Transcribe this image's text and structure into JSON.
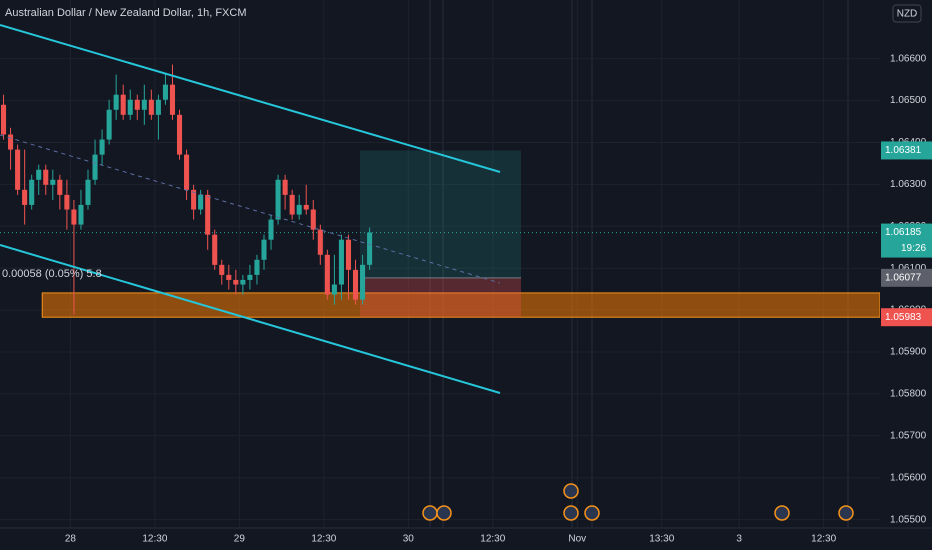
{
  "chart_data": {
    "type": "candlestick",
    "title": "Australian Dollar / New Zealand Dollar, 1h, FXCM",
    "currency": "NZD",
    "annotation": "0.00058 (0.05%) 5.8",
    "up_color": "#26a69a",
    "down_color": "#ef5350",
    "open": [
      1.0649,
      1.06419,
      1.06383,
      1.06287,
      1.06251,
      1.06311,
      1.06335,
      1.06299,
      1.06311,
      1.06275,
      1.0624,
      1.06204,
      1.06251,
      1.06311,
      1.06371,
      1.06407,
      1.06478,
      1.06514,
      1.06466,
      1.06502,
      1.06478,
      1.06502,
      1.06466,
      1.06502,
      1.06538,
      1.06466,
      1.06371,
      1.06287,
      1.0624,
      1.06275,
      1.0618,
      1.06108,
      1.06084,
      1.06072,
      1.06061,
      1.06072,
      1.06084,
      1.0612,
      1.06168,
      1.06216,
      1.06311,
      1.06275,
      1.06228,
      1.06251,
      1.0624,
      1.06192,
      1.06132,
      1.06037,
      1.06061,
      1.06168,
      1.06096,
      1.06025,
      1.06108
    ],
    "high": [
      1.06514,
      1.06435,
      1.06395,
      1.06383,
      1.06323,
      1.06347,
      1.06347,
      1.06335,
      1.06323,
      1.06311,
      1.06263,
      1.06287,
      1.06335,
      1.06407,
      1.06431,
      1.06502,
      1.06562,
      1.06538,
      1.06526,
      1.06514,
      1.06538,
      1.06526,
      1.06514,
      1.06562,
      1.06586,
      1.06478,
      1.06383,
      1.06299,
      1.06287,
      1.06287,
      1.06192,
      1.0612,
      1.06108,
      1.06096,
      1.06084,
      1.06108,
      1.06132,
      1.0618,
      1.06228,
      1.06323,
      1.06323,
      1.06287,
      1.06275,
      1.06299,
      1.06263,
      1.06204,
      1.06144,
      1.06132,
      1.0618,
      1.0618,
      1.0612,
      1.06132,
      1.06197
    ],
    "low": [
      1.06407,
      1.06335,
      1.06275,
      1.06204,
      1.0624,
      1.06275,
      1.06275,
      1.06263,
      1.0624,
      1.06192,
      1.05989,
      1.06192,
      1.0624,
      1.06299,
      1.06347,
      1.06395,
      1.06454,
      1.06454,
      1.06454,
      1.06454,
      1.06442,
      1.06454,
      1.06407,
      1.0649,
      1.06454,
      1.06359,
      1.06263,
      1.06216,
      1.06228,
      1.06144,
      1.06096,
      1.06061,
      1.06049,
      1.06037,
      1.06037,
      1.06049,
      1.06061,
      1.06096,
      1.06144,
      1.06204,
      1.0624,
      1.06216,
      1.06216,
      1.06228,
      1.06168,
      1.06108,
      1.06025,
      1.06013,
      1.06025,
      1.06025,
      1.06013,
      1.06013,
      1.06096
    ],
    "close": [
      1.06419,
      1.06383,
      1.06287,
      1.06251,
      1.06311,
      1.06335,
      1.06299,
      1.06311,
      1.06275,
      1.0624,
      1.06204,
      1.06251,
      1.06311,
      1.06371,
      1.06407,
      1.06478,
      1.06514,
      1.06466,
      1.06502,
      1.06478,
      1.06502,
      1.06466,
      1.06502,
      1.06538,
      1.06466,
      1.06371,
      1.06287,
      1.0624,
      1.06275,
      1.0618,
      1.06108,
      1.06084,
      1.06072,
      1.06061,
      1.06072,
      1.06084,
      1.0612,
      1.06168,
      1.06216,
      1.06311,
      1.06275,
      1.06228,
      1.06251,
      1.0624,
      1.06192,
      1.06132,
      1.06037,
      1.06061,
      1.06168,
      1.06096,
      1.06025,
      1.06108,
      1.06185
    ],
    "xlim": [
      0,
      125
    ],
    "xticks": [
      {
        "value": 10,
        "label": "28"
      },
      {
        "value": 22,
        "label": "12:30"
      },
      {
        "value": 34,
        "label": "29"
      },
      {
        "value": 46,
        "label": "12:30"
      },
      {
        "value": 58,
        "label": "30"
      },
      {
        "value": 70,
        "label": "12:30"
      },
      {
        "value": 82,
        "label": "Nov"
      },
      {
        "value": 94,
        "label": "13:30"
      },
      {
        "value": 105,
        "label": "3"
      },
      {
        "value": 117,
        "label": "12:30"
      }
    ],
    "ylim": [
      1.0548,
      1.0674
    ],
    "yticks": [
      {
        "value": 1.055,
        "label": "1.05500"
      },
      {
        "value": 1.056,
        "label": "1.05600"
      },
      {
        "value": 1.057,
        "label": "1.05700"
      },
      {
        "value": 1.058,
        "label": "1.05800"
      },
      {
        "value": 1.059,
        "label": "1.05900"
      },
      {
        "value": 1.06,
        "label": "1.06000"
      },
      {
        "value": 1.061,
        "label": "1.06100"
      },
      {
        "value": 1.062,
        "label": "1.06200"
      },
      {
        "value": 1.063,
        "label": "1.06300"
      },
      {
        "value": 1.064,
        "label": "1.06400"
      },
      {
        "value": 1.065,
        "label": "1.06500"
      },
      {
        "value": 1.066,
        "label": "1.06600"
      }
    ],
    "grid": true,
    "target": 1.06381,
    "current_price": 1.06185,
    "countdown": "19:26",
    "entry": 1.06077,
    "stop": 1.05983,
    "zone": {
      "low": 1.05983,
      "high": 1.06041
    }
  }
}
